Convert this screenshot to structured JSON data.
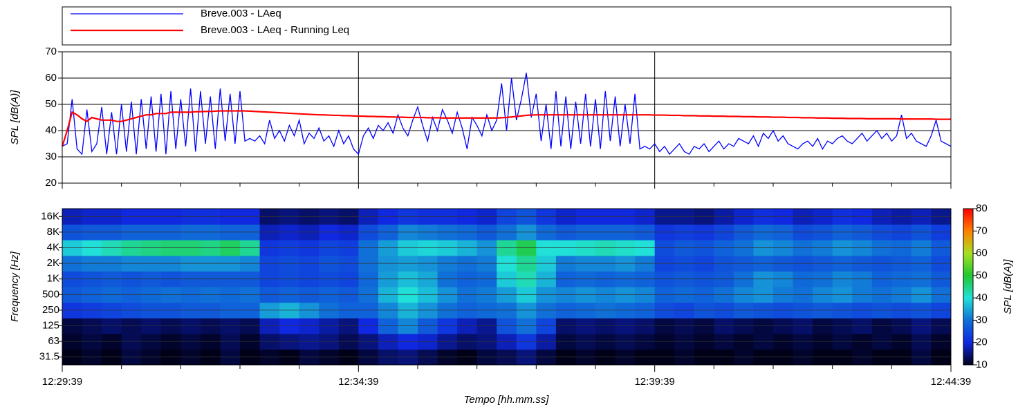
{
  "chart_data": [
    {
      "type": "line",
      "ylabel": "SPL [dB(A)]",
      "xlim": [
        0,
        900
      ],
      "xticks": [
        0,
        300,
        600,
        900
      ],
      "ylim": [
        20,
        70
      ],
      "yticks": [
        20,
        30,
        40,
        50,
        60,
        70
      ],
      "grid": true,
      "legend": "top",
      "x": [
        0,
        5,
        10,
        15,
        20,
        25,
        30,
        35,
        40,
        45,
        50,
        55,
        60,
        65,
        70,
        75,
        80,
        85,
        90,
        95,
        100,
        105,
        110,
        115,
        120,
        125,
        130,
        135,
        140,
        145,
        150,
        155,
        160,
        165,
        170,
        175,
        180,
        185,
        190,
        195,
        200,
        205,
        210,
        215,
        220,
        225,
        230,
        235,
        240,
        245,
        250,
        255,
        260,
        265,
        270,
        275,
        280,
        285,
        290,
        295,
        300,
        305,
        310,
        315,
        320,
        325,
        330,
        335,
        340,
        345,
        350,
        355,
        360,
        365,
        370,
        375,
        380,
        385,
        390,
        395,
        400,
        405,
        410,
        415,
        420,
        425,
        430,
        435,
        440,
        445,
        450,
        455,
        460,
        465,
        470,
        475,
        480,
        485,
        490,
        495,
        500,
        505,
        510,
        515,
        520,
        525,
        530,
        535,
        540,
        545,
        550,
        555,
        560,
        565,
        570,
        575,
        580,
        585,
        590,
        595,
        600,
        605,
        610,
        615,
        620,
        625,
        630,
        635,
        640,
        645,
        650,
        655,
        660,
        665,
        670,
        675,
        680,
        685,
        690,
        695,
        700,
        705,
        710,
        715,
        720,
        725,
        730,
        735,
        740,
        745,
        750,
        755,
        760,
        765,
        770,
        775,
        780,
        785,
        790,
        795,
        800,
        805,
        810,
        815,
        820,
        825,
        830,
        835,
        840,
        845,
        850,
        855,
        860,
        865,
        870,
        875,
        880,
        885,
        890,
        895,
        900
      ],
      "series": [
        {
          "name": "Breve.003 - LAeq",
          "color": "#0000ff",
          "values": [
            34,
            35,
            52,
            33,
            31,
            48,
            32,
            35,
            49,
            31,
            47,
            31,
            50,
            32,
            51,
            31,
            52,
            33,
            53,
            32,
            54,
            31,
            55,
            33,
            52,
            34,
            56,
            32,
            55,
            35,
            53,
            33,
            56,
            36,
            54,
            35,
            55,
            36,
            37,
            36,
            38,
            35,
            44,
            37,
            40,
            36,
            42,
            38,
            44,
            35,
            39,
            37,
            41,
            36,
            38,
            34,
            40,
            35,
            38,
            33,
            31,
            38,
            41,
            37,
            42,
            40,
            43,
            39,
            46,
            41,
            38,
            44,
            49,
            42,
            36,
            45,
            40,
            48,
            44,
            39,
            47,
            41,
            33,
            45,
            42,
            38,
            46,
            40,
            44,
            58,
            40,
            60,
            44,
            52,
            62,
            45,
            54,
            36,
            50,
            33,
            55,
            34,
            53,
            33,
            51,
            35,
            54,
            34,
            52,
            33,
            55,
            36,
            53,
            34,
            50,
            35,
            54,
            33,
            34,
            33,
            35,
            32,
            34,
            31,
            33,
            35,
            32,
            31,
            34,
            33,
            35,
            32,
            34,
            36,
            33,
            35,
            34,
            37,
            36,
            35,
            38,
            34,
            39,
            37,
            40,
            36,
            38,
            35,
            34,
            33,
            35,
            36,
            34,
            37,
            33,
            36,
            35,
            37,
            38,
            36,
            35,
            37,
            39,
            36,
            38,
            40,
            37,
            39,
            36,
            38,
            46,
            37,
            39,
            36,
            35,
            34,
            38,
            44,
            36,
            35,
            34
          ]
        },
        {
          "name": "Breve.003 - LAeq - Running Leq",
          "color": "#ff0000",
          "values": [
            34,
            40,
            47,
            46,
            44.5,
            43.5,
            45,
            44.5,
            44,
            44,
            44,
            43.5,
            43.5,
            44,
            44.5,
            45,
            45.5,
            46,
            46,
            46.5,
            46.5,
            46.5,
            47,
            47,
            47,
            47,
            47,
            47.2,
            47.2,
            47.3,
            47.3,
            47.4,
            47.5,
            47.5,
            47.5,
            47.5,
            47.5,
            47.5,
            47.4,
            47.3,
            47.2,
            47.1,
            47,
            46.9,
            46.8,
            46.7,
            46.6,
            46.5,
            46.4,
            46.3,
            46.2,
            46.1,
            46,
            46,
            45.9,
            45.8,
            45.8,
            45.7,
            45.7,
            45.6,
            45.5,
            45.5,
            45.4,
            45.4,
            45.3,
            45.3,
            45.2,
            45.2,
            45.1,
            45.1,
            45,
            45,
            45,
            45,
            44.9,
            44.9,
            44.9,
            44.8,
            44.8,
            44.8,
            44.8,
            44.8,
            44.8,
            44.8,
            44.8,
            44.8,
            44.8,
            44.8,
            44.8,
            44.9,
            45,
            45.2,
            45.4,
            45.6,
            45.8,
            45.9,
            46,
            46,
            46,
            46,
            46,
            46,
            46,
            46,
            46,
            46,
            46,
            46,
            46,
            46,
            46,
            46,
            46,
            46,
            46,
            46,
            46,
            46,
            46,
            46,
            45.9,
            45.9,
            45.9,
            45.8,
            45.8,
            45.8,
            45.7,
            45.7,
            45.7,
            45.6,
            45.6,
            45.6,
            45.5,
            45.5,
            45.5,
            45.4,
            45.4,
            45.4,
            45.3,
            45.3,
            45.3,
            45.2,
            45.2,
            45.2,
            45.1,
            45.1,
            45.1,
            45,
            45,
            45,
            44.9,
            44.9,
            44.9,
            44.8,
            44.8,
            44.8,
            44.7,
            44.7,
            44.7,
            44.6,
            44.6,
            44.6,
            44.6,
            44.5,
            44.5,
            44.5,
            44.5,
            44.5,
            44.5,
            44.5,
            44.4,
            44.4,
            44.4,
            44.4,
            44.4,
            44.4,
            44.4,
            44.3,
            44.3,
            44.3,
            44.3
          ]
        }
      ]
    },
    {
      "type": "heatmap",
      "xlabel": "Tempo [hh.mm.ss]",
      "ylabel": "Frequency [Hz]",
      "xlim": [
        0,
        900
      ],
      "xticks": [
        {
          "value": 0,
          "label": "12:29:39"
        },
        {
          "value": 300,
          "label": "12:34:39"
        },
        {
          "value": 600,
          "label": "12:39:39"
        },
        {
          "value": 900,
          "label": "12:44:39"
        }
      ],
      "xminorticks": [
        60,
        120,
        180,
        240,
        360,
        420,
        480,
        540,
        660,
        720,
        780,
        840
      ],
      "bins": [
        0,
        20,
        40,
        60,
        80,
        100,
        120,
        140,
        160,
        180,
        200,
        220,
        240,
        260,
        280,
        300,
        320,
        340,
        360,
        380,
        400,
        420,
        440,
        460,
        480,
        500,
        520,
        540,
        560,
        580,
        600,
        620,
        640,
        660,
        680,
        700,
        720,
        740,
        760,
        780,
        800,
        820,
        840,
        860,
        880,
        900
      ],
      "categories": [
        "31.5",
        "63",
        "125",
        "250",
        "500",
        "1K",
        "2K",
        "4K",
        "8K",
        "16K"
      ],
      "colorbar_label": "SPL [dB(A)]",
      "clim": [
        10,
        80
      ],
      "cticks": [
        10,
        20,
        30,
        40,
        50,
        60,
        70,
        80
      ],
      "colormap": [
        "#000018",
        "#1028e0",
        "#1070d8",
        "#20e0d8",
        "#20c830",
        "#a8e020",
        "#ff8000",
        "#ff0000"
      ],
      "values": [
        [
          10,
          11,
          10,
          12,
          11,
          10,
          11,
          10,
          12,
          10,
          11,
          10,
          12,
          11,
          10,
          12,
          14,
          15,
          13,
          11,
          10,
          12,
          13,
          15,
          12,
          10,
          11,
          10,
          11,
          10,
          10,
          11,
          10,
          10,
          11,
          10,
          10,
          11,
          10,
          10,
          11,
          10,
          10,
          12,
          10
        ],
        [
          11,
          12,
          11,
          13,
          12,
          11,
          12,
          11,
          13,
          11,
          14,
          15,
          16,
          15,
          13,
          15,
          18,
          20,
          19,
          16,
          14,
          15,
          18,
          22,
          17,
          12,
          13,
          12,
          13,
          12,
          11,
          12,
          11,
          12,
          11,
          12,
          11,
          12,
          11,
          12,
          11,
          12,
          11,
          13,
          11
        ],
        [
          12,
          13,
          14,
          13,
          14,
          13,
          14,
          13,
          14,
          13,
          18,
          20,
          19,
          17,
          15,
          20,
          28,
          32,
          27,
          22,
          18,
          16,
          26,
          30,
          24,
          14,
          15,
          14,
          15,
          14,
          12,
          13,
          12,
          14,
          13,
          12,
          13,
          14,
          12,
          13,
          14,
          12,
          13,
          15,
          13
        ],
        [
          22,
          23,
          24,
          25,
          26,
          26,
          27,
          27,
          28,
          28,
          34,
          36,
          33,
          30,
          28,
          28,
          32,
          36,
          33,
          30,
          28,
          29,
          30,
          33,
          30,
          28,
          29,
          30,
          29,
          28,
          25,
          24,
          26,
          25,
          27,
          26,
          25,
          26,
          27,
          26,
          25,
          26,
          25,
          26,
          24
        ],
        [
          27,
          28,
          29,
          28,
          29,
          30,
          29,
          30,
          29,
          30,
          27,
          28,
          27,
          28,
          27,
          30,
          36,
          40,
          37,
          33,
          30,
          31,
          34,
          38,
          33,
          32,
          33,
          32,
          33,
          32,
          28,
          29,
          28,
          30,
          32,
          33,
          31,
          30,
          32,
          33,
          31,
          30,
          31,
          33,
          30
        ],
        [
          25,
          26,
          27,
          26,
          27,
          26,
          27,
          27,
          27,
          27,
          24,
          25,
          24,
          25,
          24,
          29,
          34,
          37,
          35,
          30,
          28,
          29,
          38,
          42,
          36,
          28,
          29,
          28,
          29,
          28,
          26,
          27,
          26,
          27,
          30,
          33,
          32,
          29,
          30,
          32,
          31,
          28,
          29,
          30,
          27
        ],
        [
          30,
          31,
          31,
          32,
          32,
          32,
          33,
          33,
          33,
          32,
          24,
          25,
          24,
          26,
          25,
          30,
          33,
          34,
          33,
          31,
          30,
          31,
          40,
          44,
          38,
          31,
          32,
          32,
          33,
          31,
          24,
          25,
          24,
          26,
          27,
          28,
          27,
          26,
          27,
          28,
          27,
          26,
          27,
          28,
          25
        ],
        [
          38,
          40,
          42,
          44,
          45,
          46,
          46,
          45,
          47,
          44,
          22,
          23,
          22,
          24,
          23,
          30,
          34,
          38,
          39,
          38,
          36,
          33,
          44,
          48,
          40,
          40,
          41,
          42,
          41,
          40,
          25,
          27,
          26,
          28,
          30,
          33,
          32,
          30,
          31,
          33,
          32,
          30,
          29,
          31,
          27
        ],
        [
          26,
          27,
          27,
          28,
          28,
          28,
          29,
          29,
          28,
          28,
          18,
          19,
          18,
          20,
          19,
          25,
          28,
          32,
          31,
          30,
          29,
          27,
          30,
          33,
          29,
          27,
          28,
          28,
          28,
          27,
          22,
          23,
          22,
          24,
          27,
          29,
          28,
          25,
          26,
          28,
          27,
          25,
          24,
          26,
          23
        ],
        [
          18,
          19,
          19,
          20,
          20,
          20,
          21,
          21,
          20,
          20,
          14,
          15,
          14,
          15,
          14,
          18,
          20,
          22,
          21,
          21,
          20,
          19,
          24,
          26,
          22,
          19,
          20,
          20,
          20,
          19,
          16,
          16,
          15,
          17,
          19,
          21,
          20,
          18,
          19,
          21,
          20,
          18,
          17,
          18,
          16
        ]
      ]
    }
  ]
}
